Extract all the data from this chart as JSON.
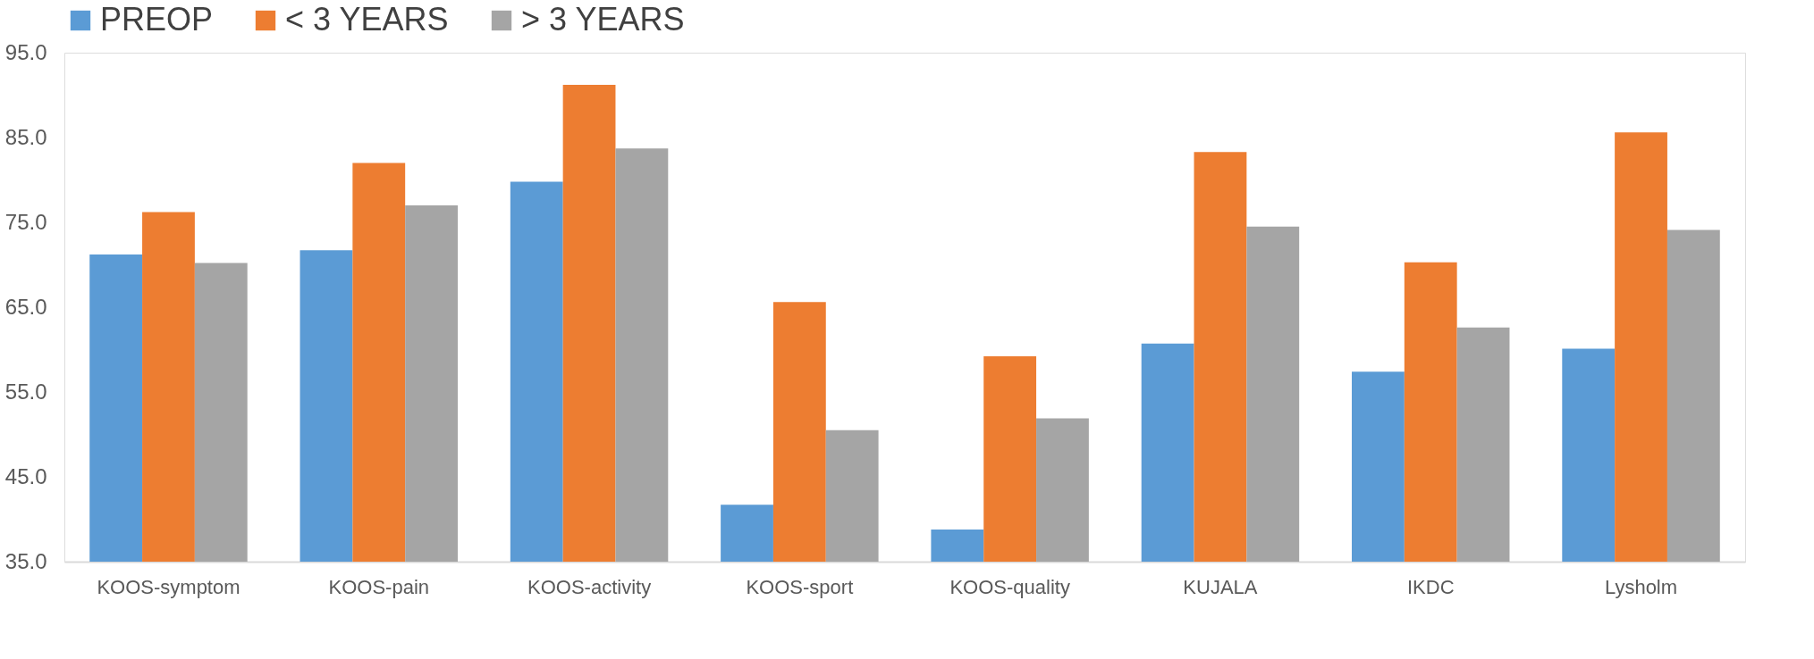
{
  "chart_data": {
    "type": "bar",
    "categories": [
      "KOOS-symptom",
      "KOOS-pain",
      "KOOS-activity",
      "KOOS-sport",
      "KOOS-quality",
      "KUJALA",
      "IKDC",
      "Lysholm"
    ],
    "series": [
      {
        "name": "PREOP",
        "color": "#5b9bd5",
        "values": [
          71.2,
          71.7,
          79.8,
          41.7,
          38.8,
          60.7,
          57.4,
          60.1
        ]
      },
      {
        "name": "< 3 YEARS",
        "color": "#ed7d31",
        "values": [
          76.2,
          82.0,
          91.2,
          65.6,
          59.2,
          83.3,
          70.3,
          85.6
        ]
      },
      {
        "name": "> 3 YEARS",
        "color": "#a5a5a5",
        "values": [
          70.2,
          77.0,
          83.7,
          50.5,
          51.9,
          74.5,
          62.6,
          74.1
        ]
      }
    ],
    "ylim": [
      35,
      95
    ],
    "yticks": [
      {
        "value": 35,
        "label": "35.0"
      },
      {
        "value": 45,
        "label": "45.0"
      },
      {
        "value": 55,
        "label": "55.0"
      },
      {
        "value": 65,
        "label": "65.0"
      },
      {
        "value": 75,
        "label": "75.0"
      },
      {
        "value": 85,
        "label": "85.0"
      },
      {
        "value": 95,
        "label": "95.0"
      }
    ],
    "grid": false,
    "legend": "top"
  }
}
